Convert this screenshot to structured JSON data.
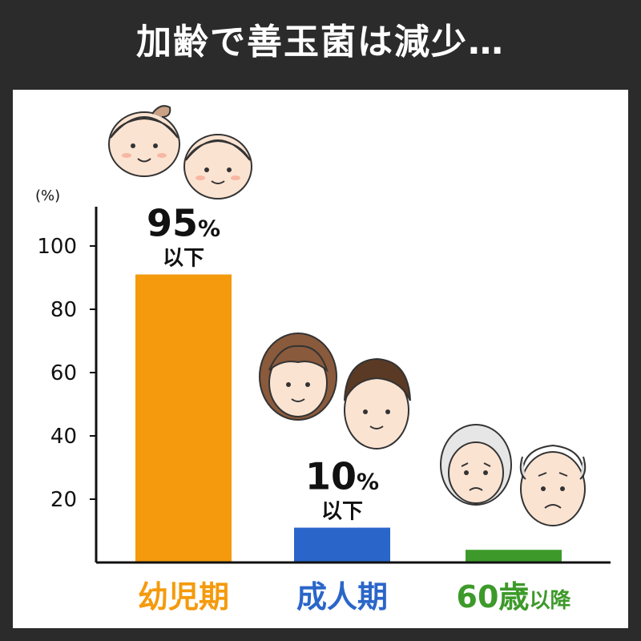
{
  "title": "加齢で善玉菌は減少…",
  "chart_data": {
    "type": "bar",
    "categories": [
      "幼児期",
      "成人期",
      "60歳以降"
    ],
    "category_display": [
      {
        "main": "幼児期",
        "suffix": ""
      },
      {
        "main": "成人期",
        "suffix": ""
      },
      {
        "main": "60歳",
        "suffix": "以降"
      }
    ],
    "values": [
      91,
      11,
      4
    ],
    "colors": [
      "#f59a0c",
      "#2a66c9",
      "#3d9a2a"
    ],
    "bar_labels": [
      {
        "value": "95",
        "unit": "%",
        "sub": "以下"
      },
      {
        "value": "10",
        "unit": "%",
        "sub": "以下"
      },
      null
    ],
    "ylabel": "(%)",
    "yticks": [
      20,
      40,
      60,
      80,
      100
    ],
    "ylim": [
      0,
      110
    ],
    "grid": false
  },
  "illustrations": [
    "baby-faces-icon",
    "adult-faces-icon",
    "elderly-faces-icon"
  ]
}
